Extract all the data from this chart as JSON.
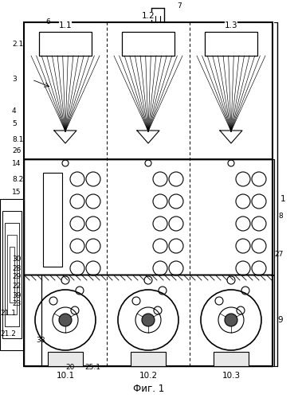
{
  "title": "Фиг. 1",
  "bg_color": "#ffffff",
  "line_color": "#000000",
  "fig_width": 3.74,
  "fig_height": 5.0,
  "dpi": 100
}
